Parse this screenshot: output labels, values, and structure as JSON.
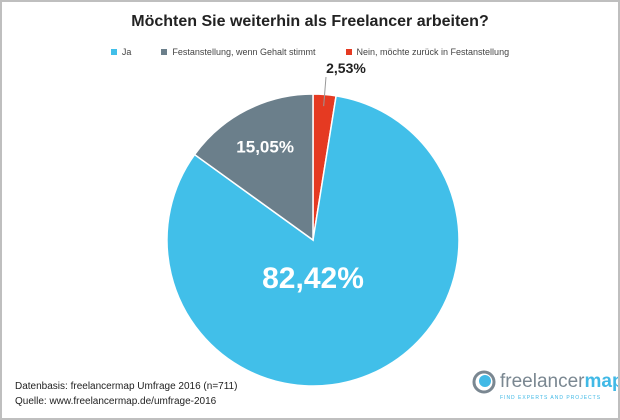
{
  "chart_data": {
    "type": "pie",
    "title": "Möchten Sie weiterhin als Freelancer arbeiten?",
    "legend_position": "top",
    "series": [
      {
        "name": "Ja",
        "value": 82.42,
        "label": "82,42%",
        "color": "#41bfe9"
      },
      {
        "name": "Festanstellung, wenn Gehalt stimmt",
        "value": 15.05,
        "label": "15,05%",
        "color": "#6b7f8b"
      },
      {
        "name": "Nein, möchte zurück in Festanstellung",
        "value": 2.53,
        "label": "2,53%",
        "color": "#e53a22"
      }
    ]
  },
  "footer": {
    "line1": "Datenbasis: freelancermap Umfrage 2016 (n=711)",
    "line2": "Quelle: www.freelancermap.de/umfrage-2016"
  },
  "logo": {
    "text_a": "freelancer",
    "text_b": "map",
    "tagline": "FIND EXPERTS AND PROJECTS"
  }
}
